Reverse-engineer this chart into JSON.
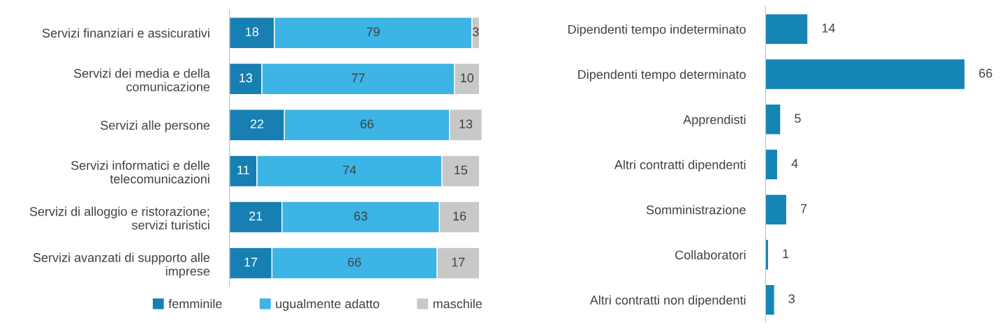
{
  "chart_data": [
    {
      "type": "bar",
      "orientation": "horizontal",
      "stacked": true,
      "data_labels": true,
      "legend": "bottom",
      "grid": false,
      "categories": [
        "Servizi finanziari e assicurativi",
        "Servizi dei media e della\ncomunicazione",
        "Servizi alle persone",
        "Servizi informatici e delle\ntelecomunicazioni",
        "Servizi di alloggio e ristorazione;\nservizi turistici",
        "Servizi avanzati di supporto alle\nimprese"
      ],
      "series": [
        {
          "name": "femminile",
          "color": "#177fb2",
          "values": [
            18,
            13,
            22,
            11,
            21,
            17
          ]
        },
        {
          "name": "ugualmente adatto",
          "color": "#3cb4e6",
          "values": [
            79,
            77,
            66,
            74,
            63,
            66
          ]
        },
        {
          "name": "maschile",
          "color": "#c8c8c8",
          "values": [
            3,
            10,
            13,
            15,
            16,
            17
          ]
        }
      ]
    },
    {
      "type": "bar",
      "orientation": "horizontal",
      "data_labels": true,
      "grid": false,
      "categories": [
        "Dipendenti tempo indeterminato",
        "Dipendenti tempo determinato",
        "Apprendisti",
        "Altri contratti dipendenti",
        "Somministrazione",
        "Collaboratori",
        "Altri contratti non dipendenti"
      ],
      "series": [
        {
          "color": "#1585b5",
          "values": [
            14,
            66,
            5,
            4,
            7,
            1,
            3
          ]
        }
      ]
    }
  ]
}
